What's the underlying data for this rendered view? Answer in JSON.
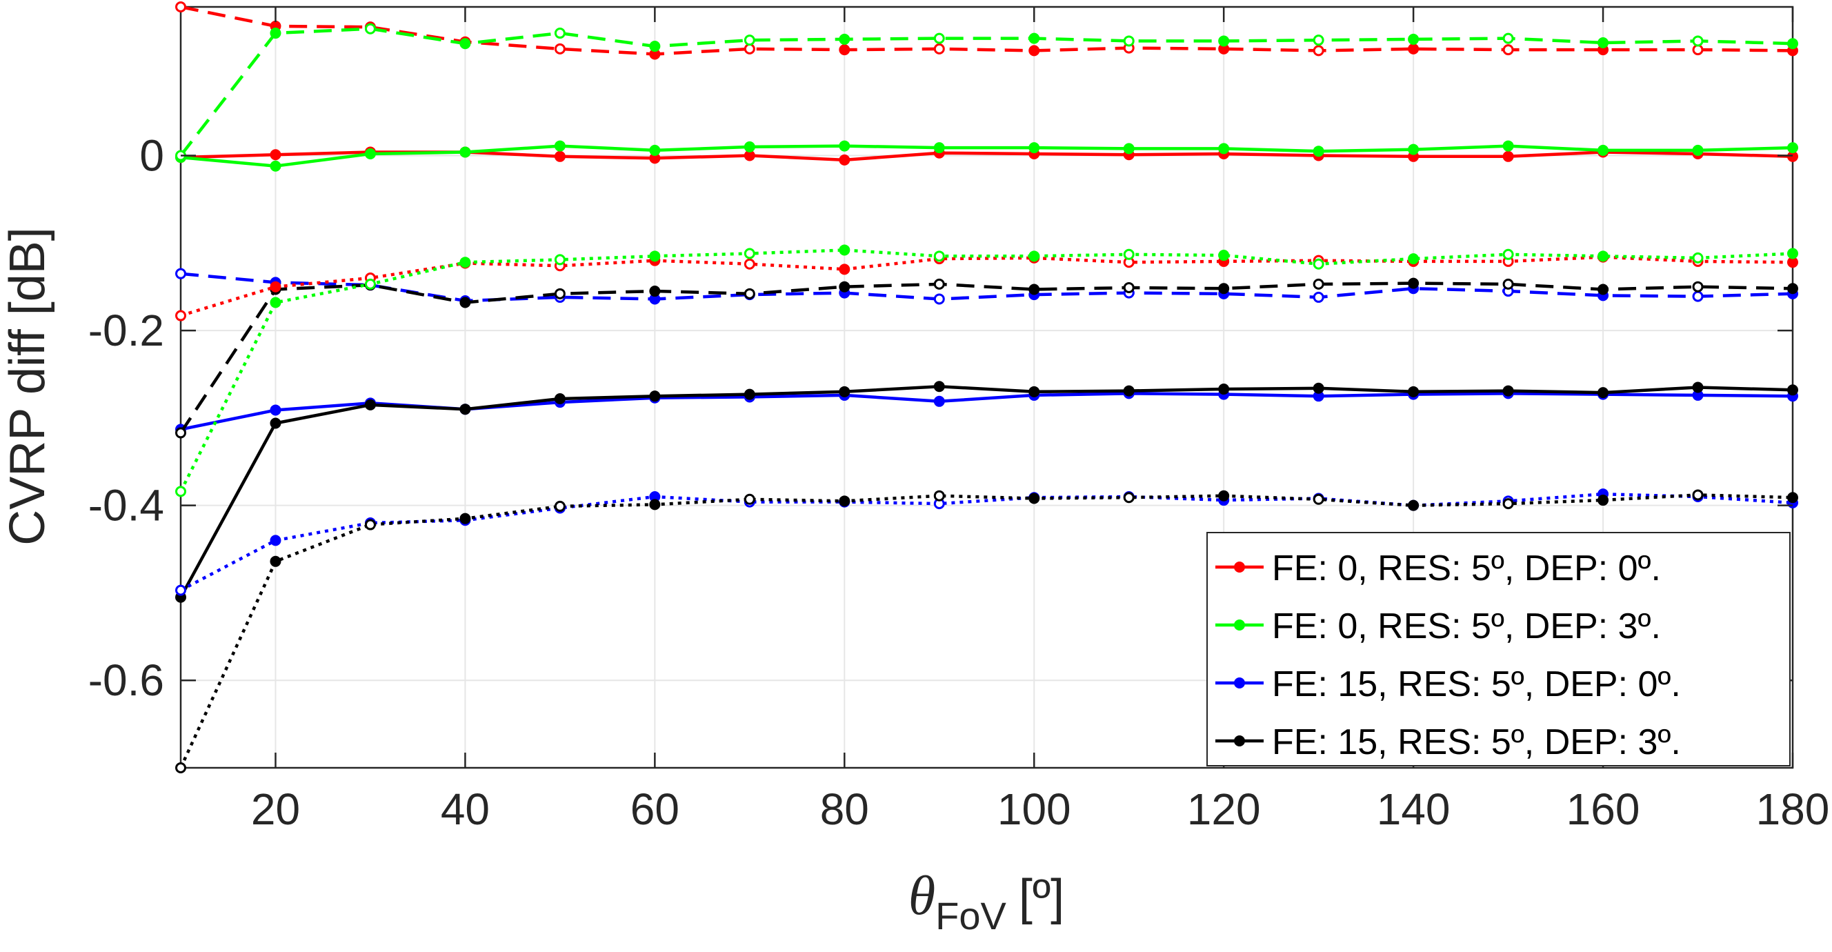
{
  "chart_data": {
    "type": "line",
    "title": "",
    "xlabel_symbol": "θ",
    "xlabel_subscript": "FoV",
    "xlabel_unit": "[º]",
    "ylabel": "CVRP diff [dB]",
    "xlim": [
      10,
      180
    ],
    "ylim": [
      -0.7,
      0.17
    ],
    "xticks": [
      20,
      40,
      60,
      80,
      100,
      120,
      140,
      160,
      180
    ],
    "yticks": [
      -0.6,
      -0.4,
      -0.2,
      0
    ],
    "ytick_labels": [
      "-0.6",
      "-0.4",
      "-0.2",
      "0"
    ],
    "grid": true,
    "legend_position": "bottom-right",
    "x": [
      10,
      20,
      30,
      40,
      50,
      60,
      70,
      80,
      90,
      100,
      110,
      120,
      130,
      140,
      150,
      160,
      170,
      180
    ],
    "legend": [
      {
        "label": "FE: 0, RES: 5º, DEP: 0º.",
        "color": "#ff0000"
      },
      {
        "label": "FE: 0, RES: 5º, DEP: 3º.",
        "color": "#00ff00"
      },
      {
        "label": "FE: 15, RES: 5º, DEP: 0º.",
        "color": "#0000ff"
      },
      {
        "label": "FE: 15, RES: 5º, DEP: 3º.",
        "color": "#000000"
      }
    ],
    "series": [
      {
        "name": "FE: 0, RES: 5º, DEP: 0º. (solid)",
        "color": "#ff0000",
        "style": "solid",
        "marker": "filled",
        "values": [
          -0.002,
          0.001,
          0.004,
          0.004,
          -0.001,
          -0.003,
          0.0,
          -0.005,
          0.003,
          0.002,
          0.001,
          0.002,
          0.0,
          -0.001,
          -0.001,
          0.004,
          0.002,
          -0.001
        ]
      },
      {
        "name": "FE: 0, RES: 5º, DEP: 3º. (solid)",
        "color": "#00ff00",
        "style": "solid",
        "marker": "filled",
        "values": [
          -0.002,
          -0.012,
          0.002,
          0.004,
          0.011,
          0.006,
          0.01,
          0.011,
          0.009,
          0.009,
          0.008,
          0.008,
          0.005,
          0.007,
          0.011,
          0.006,
          0.006,
          0.009
        ]
      },
      {
        "name": "FE: 15, RES: 5º, DEP: 0º. (solid)",
        "color": "#0000ff",
        "style": "solid",
        "marker": "filled",
        "values": [
          -0.313,
          -0.291,
          -0.283,
          -0.29,
          -0.282,
          -0.277,
          -0.276,
          -0.274,
          -0.281,
          -0.274,
          -0.272,
          -0.273,
          -0.275,
          -0.273,
          -0.272,
          -0.273,
          -0.274,
          -0.275
        ]
      },
      {
        "name": "FE: 15, RES: 5º, DEP: 3º. (solid)",
        "color": "#000000",
        "style": "solid",
        "marker": "filled",
        "values": [
          -0.505,
          -0.306,
          -0.285,
          -0.29,
          -0.278,
          -0.275,
          -0.273,
          -0.27,
          -0.264,
          -0.27,
          -0.269,
          -0.267,
          -0.266,
          -0.27,
          -0.269,
          -0.271,
          -0.265,
          -0.268
        ]
      },
      {
        "name": "FE: 0, RES: 5º, DEP: 0º. (dashed)",
        "color": "#ff0000",
        "style": "dashed",
        "marker": "mixed",
        "values": [
          0.17,
          0.148,
          0.147,
          0.13,
          0.122,
          0.116,
          0.122,
          0.121,
          0.122,
          0.12,
          0.123,
          0.122,
          0.12,
          0.122,
          0.121,
          0.121,
          0.121,
          0.12
        ]
      },
      {
        "name": "FE: 0, RES: 5º, DEP: 3º. (dashed)",
        "color": "#00ff00",
        "style": "dashed",
        "marker": "mixed",
        "values": [
          0.0,
          0.14,
          0.145,
          0.128,
          0.14,
          0.125,
          0.132,
          0.133,
          0.134,
          0.134,
          0.131,
          0.131,
          0.132,
          0.133,
          0.134,
          0.129,
          0.131,
          0.128
        ]
      },
      {
        "name": "FE: 15, RES: 5º, DEP: 0º. (dashed)",
        "color": "#0000ff",
        "style": "dashed",
        "marker": "mixed",
        "values": [
          -0.135,
          -0.145,
          -0.148,
          -0.166,
          -0.162,
          -0.164,
          -0.159,
          -0.157,
          -0.164,
          -0.159,
          -0.157,
          -0.158,
          -0.162,
          -0.152,
          -0.155,
          -0.16,
          -0.161,
          -0.158
        ]
      },
      {
        "name": "FE: 15, RES: 5º, DEP: 3º. (dashed)",
        "color": "#000000",
        "style": "dashed",
        "marker": "mixed",
        "values": [
          -0.317,
          -0.153,
          -0.148,
          -0.168,
          -0.158,
          -0.155,
          -0.158,
          -0.15,
          -0.147,
          -0.153,
          -0.151,
          -0.152,
          -0.147,
          -0.146,
          -0.147,
          -0.153,
          -0.15,
          -0.152
        ]
      },
      {
        "name": "FE: 0, RES: 5º, DEP: 0º. (dotted)",
        "color": "#ff0000",
        "style": "dotted",
        "marker": "mixed",
        "values": [
          -0.183,
          -0.15,
          -0.14,
          -0.123,
          -0.126,
          -0.12,
          -0.124,
          -0.13,
          -0.118,
          -0.117,
          -0.122,
          -0.121,
          -0.12,
          -0.121,
          -0.121,
          -0.116,
          -0.121,
          -0.122
        ]
      },
      {
        "name": "FE: 0, RES: 5º, DEP: 3º. (dotted)",
        "color": "#00ff00",
        "style": "dotted",
        "marker": "mixed",
        "values": [
          -0.384,
          -0.168,
          -0.147,
          -0.122,
          -0.119,
          -0.115,
          -0.112,
          -0.108,
          -0.115,
          -0.115,
          -0.113,
          -0.114,
          -0.124,
          -0.118,
          -0.113,
          -0.115,
          -0.117,
          -0.112
        ]
      },
      {
        "name": "FE: 15, RES: 5º, DEP: 0º. (dotted)",
        "color": "#0000ff",
        "style": "dotted",
        "marker": "mixed",
        "values": [
          -0.497,
          -0.44,
          -0.42,
          -0.417,
          -0.403,
          -0.39,
          -0.396,
          -0.396,
          -0.398,
          -0.391,
          -0.39,
          -0.394,
          -0.392,
          -0.4,
          -0.395,
          -0.387,
          -0.39,
          -0.397
        ]
      },
      {
        "name": "FE: 15, RES: 5º, DEP: 3º. (dotted)",
        "color": "#000000",
        "style": "dotted",
        "marker": "mixed",
        "values": [
          -0.7,
          -0.464,
          -0.422,
          -0.415,
          -0.401,
          -0.399,
          -0.393,
          -0.395,
          -0.389,
          -0.392,
          -0.391,
          -0.389,
          -0.393,
          -0.4,
          -0.398,
          -0.394,
          -0.388,
          -0.391
        ]
      }
    ]
  }
}
